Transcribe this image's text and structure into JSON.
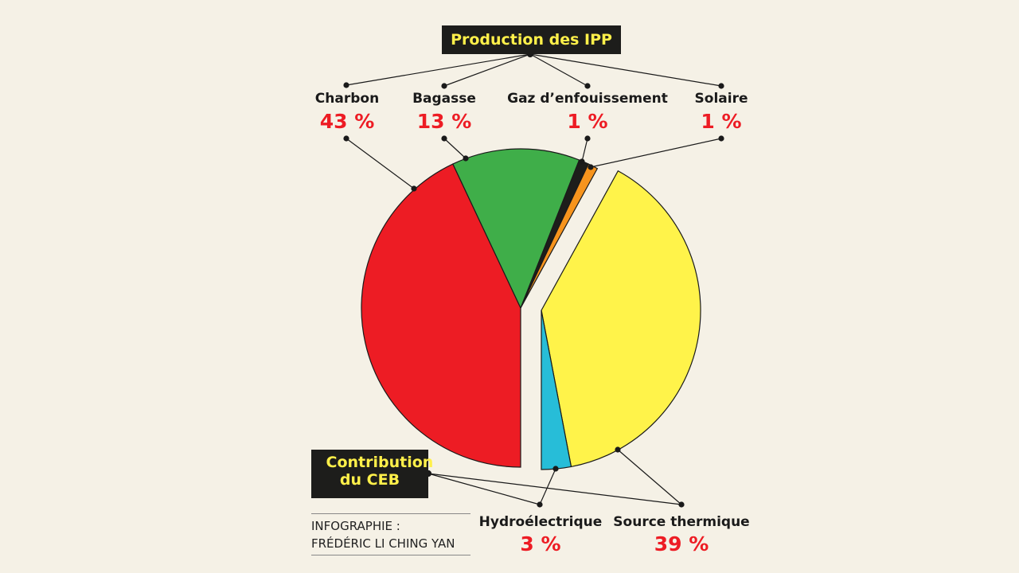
{
  "chart_data": {
    "type": "pie",
    "groups": [
      {
        "title": "Production des IPP",
        "slices": [
          {
            "label": "Charbon",
            "value": 43,
            "display": "43 %",
            "color": "#ed1c24"
          },
          {
            "label": "Bagasse",
            "value": 13,
            "display": "13 %",
            "color": "#3fae49"
          },
          {
            "label": "Gaz d’enfouissement",
            "value": 1,
            "display": "1 %",
            "color": "#1d1d1b"
          },
          {
            "label": "Solaire",
            "value": 1,
            "display": "1 %",
            "color": "#f7941d"
          }
        ]
      },
      {
        "title": "Contribution du CEB",
        "slices": [
          {
            "label": "Source thermique",
            "value": 39,
            "display": "39 %",
            "color": "#fff34a"
          },
          {
            "label": "Hydroélectrique",
            "value": 3,
            "display": "3 %",
            "color": "#27bdd8"
          }
        ]
      }
    ]
  },
  "credit": {
    "line1": "INFOGRAPHIE :",
    "line2": "FRÉDÉRIC LI CHING YAN"
  }
}
